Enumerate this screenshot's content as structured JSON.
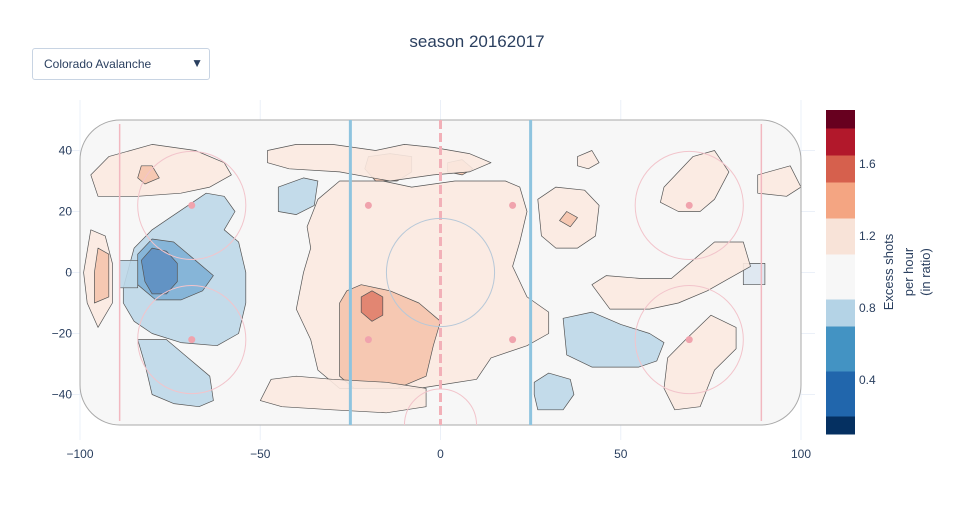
{
  "dropdown": {
    "selected": "Colorado Avalanche"
  },
  "chart_data": {
    "type": "heatmap",
    "title": "season 20162017",
    "subtype": "contour heatmap over hockey rink",
    "xlim": [
      -100,
      100
    ],
    "ylim": [
      -50,
      50
    ],
    "x_ticks": [
      -100,
      -50,
      0,
      50,
      100
    ],
    "x_tick_labels": [
      "−100",
      "−50",
      "0",
      "50",
      "100"
    ],
    "y_ticks": [
      40,
      20,
      0,
      -20,
      -40
    ],
    "y_tick_labels": [
      "40",
      "20",
      "0",
      "−20",
      "−40"
    ],
    "colorbar": {
      "title_lines": [
        "Excess shots",
        "per hour",
        "(in ratio)"
      ],
      "range": [
        0.1,
        1.9
      ],
      "tick_values": [
        0.4,
        0.8,
        1.2,
        1.6
      ],
      "tick_labels": [
        "0.4",
        "0.8",
        "1.2",
        "1.6"
      ],
      "bands": [
        {
          "from": 0.1,
          "to": 0.2,
          "color": "#053061"
        },
        {
          "from": 0.2,
          "to": 0.45,
          "color": "#2166ac"
        },
        {
          "from": 0.45,
          "to": 0.7,
          "color": "#4393c3"
        },
        {
          "from": 0.7,
          "to": 0.85,
          "color": "#b4d3e6"
        },
        {
          "from": 0.85,
          "to": 1.1,
          "color": "#f7f7f7"
        },
        {
          "from": 1.1,
          "to": 1.3,
          "color": "#f8e3d8"
        },
        {
          "from": 1.3,
          "to": 1.5,
          "color": "#f4a582"
        },
        {
          "from": 1.5,
          "to": 1.65,
          "color": "#d6604d"
        },
        {
          "from": 1.65,
          "to": 1.8,
          "color": "#b2182b"
        },
        {
          "from": 1.8,
          "to": 1.9,
          "color": "#67001f"
        }
      ]
    },
    "regions": [
      {
        "name": "left-slot-cold-light",
        "level": 0.75,
        "color": "#bcd7e8",
        "points": [
          [
            -88,
            -5
          ],
          [
            -85,
            8
          ],
          [
            -80,
            14
          ],
          [
            -75,
            18
          ],
          [
            -70,
            22
          ],
          [
            -65,
            26
          ],
          [
            -60,
            25
          ],
          [
            -57,
            20
          ],
          [
            -60,
            14
          ],
          [
            -56,
            10
          ],
          [
            -54,
            0
          ],
          [
            -54,
            -10
          ],
          [
            -56,
            -20
          ],
          [
            -62,
            -24
          ],
          [
            -72,
            -23
          ],
          [
            -80,
            -20
          ],
          [
            -85,
            -16
          ],
          [
            -88,
            -10
          ]
        ]
      },
      {
        "name": "left-slot-cold-mid",
        "level": 0.55,
        "color": "#7fb0d6",
        "points": [
          [
            -84,
            -4
          ],
          [
            -84,
            6
          ],
          [
            -80,
            11
          ],
          [
            -74,
            10
          ],
          [
            -68,
            4
          ],
          [
            -63,
            -1
          ],
          [
            -66,
            -6
          ],
          [
            -72,
            -9
          ],
          [
            -79,
            -9
          ]
        ]
      },
      {
        "name": "left-slot-cold-dark",
        "level": 0.4,
        "color": "#5e8fc2",
        "points": [
          [
            -82,
            -3
          ],
          [
            -83,
            4
          ],
          [
            -80,
            8
          ],
          [
            -76,
            7
          ],
          [
            -73,
            3
          ],
          [
            -73,
            -3
          ],
          [
            -76,
            -7
          ],
          [
            -80,
            -7
          ]
        ]
      },
      {
        "name": "left-low-cold",
        "level": 0.75,
        "color": "#bcd7e8",
        "points": [
          [
            -84,
            -22
          ],
          [
            -82,
            -30
          ],
          [
            -80,
            -40
          ],
          [
            -74,
            -43
          ],
          [
            -67,
            -44
          ],
          [
            -63,
            -42
          ],
          [
            -64,
            -34
          ],
          [
            -70,
            -28
          ],
          [
            -76,
            -22
          ]
        ]
      },
      {
        "name": "left-high-cold-small",
        "level": 0.75,
        "color": "#bcd7e8",
        "points": [
          [
            -45,
            28
          ],
          [
            -45,
            20
          ],
          [
            -40,
            19
          ],
          [
            -35,
            22
          ],
          [
            -34,
            30
          ],
          [
            -38,
            31
          ]
        ]
      },
      {
        "name": "left-crease-cold",
        "level": 0.75,
        "color": "#bcd7e8",
        "points": [
          [
            -89,
            -5
          ],
          [
            -89,
            4
          ],
          [
            -84,
            4
          ],
          [
            -84,
            -5
          ]
        ]
      },
      {
        "name": "right-low-cold",
        "level": 0.75,
        "color": "#bcd7e8",
        "points": [
          [
            34,
            -15
          ],
          [
            42,
            -13
          ],
          [
            50,
            -17
          ],
          [
            58,
            -20
          ],
          [
            62,
            -23
          ],
          [
            60,
            -29
          ],
          [
            55,
            -31
          ],
          [
            42,
            -31
          ],
          [
            35,
            -27
          ]
        ]
      },
      {
        "name": "neutral-low-cold",
        "level": 0.75,
        "color": "#bcd7e8",
        "points": [
          [
            26,
            -36
          ],
          [
            30,
            -33
          ],
          [
            36,
            -35
          ],
          [
            37,
            -40
          ],
          [
            34,
            -45
          ],
          [
            27,
            -45
          ],
          [
            26,
            -40
          ]
        ]
      },
      {
        "name": "right-crease-cold",
        "level": 0.75,
        "color": "#dbe6f0",
        "points": [
          [
            84,
            -4
          ],
          [
            84,
            3
          ],
          [
            90,
            3
          ],
          [
            90,
            -4
          ]
        ]
      },
      {
        "name": "center-warm",
        "level": 1.15,
        "color": "#fbe9e0",
        "points": [
          [
            -37,
            15
          ],
          [
            -34,
            24
          ],
          [
            -28,
            30
          ],
          [
            -16,
            30
          ],
          [
            -8,
            28
          ],
          [
            4,
            30
          ],
          [
            18,
            30
          ],
          [
            22,
            28
          ],
          [
            24,
            20
          ],
          [
            22,
            10
          ],
          [
            20,
            2
          ],
          [
            24,
            -8
          ],
          [
            30,
            -13
          ],
          [
            30,
            -20
          ],
          [
            24,
            -24
          ],
          [
            14,
            -28
          ],
          [
            10,
            -35
          ],
          [
            -6,
            -38
          ],
          [
            -15,
            -38
          ],
          [
            -28,
            -38
          ],
          [
            -34,
            -32
          ],
          [
            -36,
            -22
          ],
          [
            -40,
            -12
          ],
          [
            -38,
            0
          ],
          [
            -36,
            8
          ]
        ]
      },
      {
        "name": "center-warm-mid",
        "level": 1.35,
        "color": "#f5c4ac",
        "points": [
          [
            -28,
            -10
          ],
          [
            -26,
            -6
          ],
          [
            -22,
            -4
          ],
          [
            -14,
            -6
          ],
          [
            -6,
            -10
          ],
          [
            0,
            -16
          ],
          [
            -2,
            -24
          ],
          [
            -4,
            -34
          ],
          [
            -12,
            -38
          ],
          [
            -24,
            -38
          ],
          [
            -28,
            -34
          ],
          [
            -28,
            -20
          ]
        ]
      },
      {
        "name": "center-warm-hot",
        "level": 1.55,
        "color": "#e07e6a",
        "points": [
          [
            -22,
            -8
          ],
          [
            -19,
            -6
          ],
          [
            -16,
            -8
          ],
          [
            -16,
            -14
          ],
          [
            -19,
            -16
          ],
          [
            -22,
            -13
          ]
        ]
      },
      {
        "name": "top-center-warm",
        "level": 1.35,
        "color": "#f5c4ac",
        "points": [
          [
            -20,
            38
          ],
          [
            -14,
            39
          ],
          [
            -8,
            38
          ],
          [
            -8,
            33
          ],
          [
            -12,
            30
          ],
          [
            -18,
            30
          ],
          [
            -21,
            34
          ]
        ]
      },
      {
        "name": "top-right-warm-small",
        "level": 1.35,
        "color": "#f5c4ac",
        "points": [
          [
            2,
            36
          ],
          [
            6,
            37
          ],
          [
            9,
            34
          ],
          [
            6,
            32
          ],
          [
            2,
            33
          ]
        ]
      },
      {
        "name": "left-net-warm",
        "level": 1.15,
        "color": "#fbe9e0",
        "points": [
          [
            -97,
            14
          ],
          [
            -93,
            12
          ],
          [
            -91,
            3
          ],
          [
            -91,
            -10
          ],
          [
            -95,
            -18
          ],
          [
            -98,
            -10
          ],
          [
            -99,
            0
          ]
        ]
      },
      {
        "name": "left-net-warm-mid",
        "level": 1.35,
        "color": "#f5c4ac",
        "points": [
          [
            -95,
            8
          ],
          [
            -92,
            6
          ],
          [
            -92,
            -8
          ],
          [
            -96,
            -10
          ],
          [
            -96,
            0
          ]
        ]
      },
      {
        "name": "left-top-warm",
        "level": 1.15,
        "color": "#fbe9e0",
        "points": [
          [
            -97,
            32
          ],
          [
            -92,
            38
          ],
          [
            -80,
            42
          ],
          [
            -68,
            40
          ],
          [
            -60,
            36
          ],
          [
            -58,
            32
          ],
          [
            -64,
            28
          ],
          [
            -72,
            26
          ],
          [
            -84,
            25
          ],
          [
            -95,
            25
          ]
        ]
      },
      {
        "name": "left-top-warm-small",
        "level": 1.35,
        "color": "#f5c4ac",
        "points": [
          [
            -83,
            35
          ],
          [
            -80,
            35
          ],
          [
            -78,
            31
          ],
          [
            -82,
            29
          ],
          [
            -84,
            31
          ]
        ]
      },
      {
        "name": "top-strip-warm",
        "level": 1.15,
        "color": "#fbe9e0",
        "points": [
          [
            -48,
            40
          ],
          [
            -40,
            42
          ],
          [
            -30,
            42
          ],
          [
            -18,
            40
          ],
          [
            -10,
            42
          ],
          [
            -2,
            41
          ],
          [
            8,
            39
          ],
          [
            14,
            36
          ],
          [
            8,
            33
          ],
          [
            -2,
            32
          ],
          [
            -14,
            30
          ],
          [
            -28,
            33
          ],
          [
            -42,
            34
          ],
          [
            -48,
            36
          ]
        ]
      },
      {
        "name": "right-net-warm-1",
        "level": 1.15,
        "color": "#fbe9e0",
        "points": [
          [
            27,
            24
          ],
          [
            32,
            28
          ],
          [
            40,
            27
          ],
          [
            44,
            22
          ],
          [
            43,
            12
          ],
          [
            38,
            8
          ],
          [
            32,
            8
          ],
          [
            28,
            12
          ]
        ]
      },
      {
        "name": "right-net-warm-1-mid",
        "level": 1.35,
        "color": "#f5c4ac",
        "points": [
          [
            35,
            20
          ],
          [
            38,
            18
          ],
          [
            36,
            15
          ],
          [
            33,
            17
          ]
        ]
      },
      {
        "name": "right-top-warm",
        "level": 1.15,
        "color": "#fbe9e0",
        "points": [
          [
            62,
            28
          ],
          [
            70,
            38
          ],
          [
            76,
            40
          ],
          [
            80,
            33
          ],
          [
            76,
            24
          ],
          [
            72,
            20
          ],
          [
            66,
            20
          ],
          [
            61,
            23
          ]
        ]
      },
      {
        "name": "right-far-warm",
        "level": 1.15,
        "color": "#fbe9e0",
        "points": [
          [
            88,
            32
          ],
          [
            97,
            35
          ],
          [
            100,
            28
          ],
          [
            96,
            25
          ],
          [
            88,
            26
          ]
        ]
      },
      {
        "name": "right-mid-warm",
        "level": 1.15,
        "color": "#fbe9e0",
        "points": [
          [
            42,
            -4
          ],
          [
            47,
            -12
          ],
          [
            58,
            -12
          ],
          [
            66,
            -10
          ],
          [
            74,
            -6
          ],
          [
            80,
            -2
          ],
          [
            86,
            2
          ],
          [
            84,
            10
          ],
          [
            76,
            10
          ],
          [
            70,
            4
          ],
          [
            64,
            -2
          ],
          [
            56,
            -2
          ],
          [
            46,
            -1
          ]
        ]
      },
      {
        "name": "right-low-warm",
        "level": 1.15,
        "color": "#fbe9e0",
        "points": [
          [
            63,
            -28
          ],
          [
            68,
            -22
          ],
          [
            75,
            -14
          ],
          [
            82,
            -18
          ],
          [
            82,
            -25
          ],
          [
            76,
            -32
          ],
          [
            72,
            -44
          ],
          [
            65,
            -45
          ],
          [
            62,
            -38
          ]
        ]
      },
      {
        "name": "left-bottom-warm",
        "level": 1.15,
        "color": "#fbe9e0",
        "points": [
          [
            -50,
            -42
          ],
          [
            -44,
            -44
          ],
          [
            -30,
            -45
          ],
          [
            -15,
            -46
          ],
          [
            -4,
            -44
          ],
          [
            -4,
            -38
          ],
          [
            -15,
            -36
          ],
          [
            -30,
            -35
          ],
          [
            -40,
            -34
          ],
          [
            -47,
            -35
          ]
        ]
      },
      {
        "name": "right-top-small-warm",
        "level": 1.15,
        "color": "#fbe9e0",
        "points": [
          [
            38,
            38
          ],
          [
            42,
            40
          ],
          [
            44,
            36
          ],
          [
            41,
            34
          ],
          [
            38,
            35
          ]
        ]
      }
    ]
  }
}
